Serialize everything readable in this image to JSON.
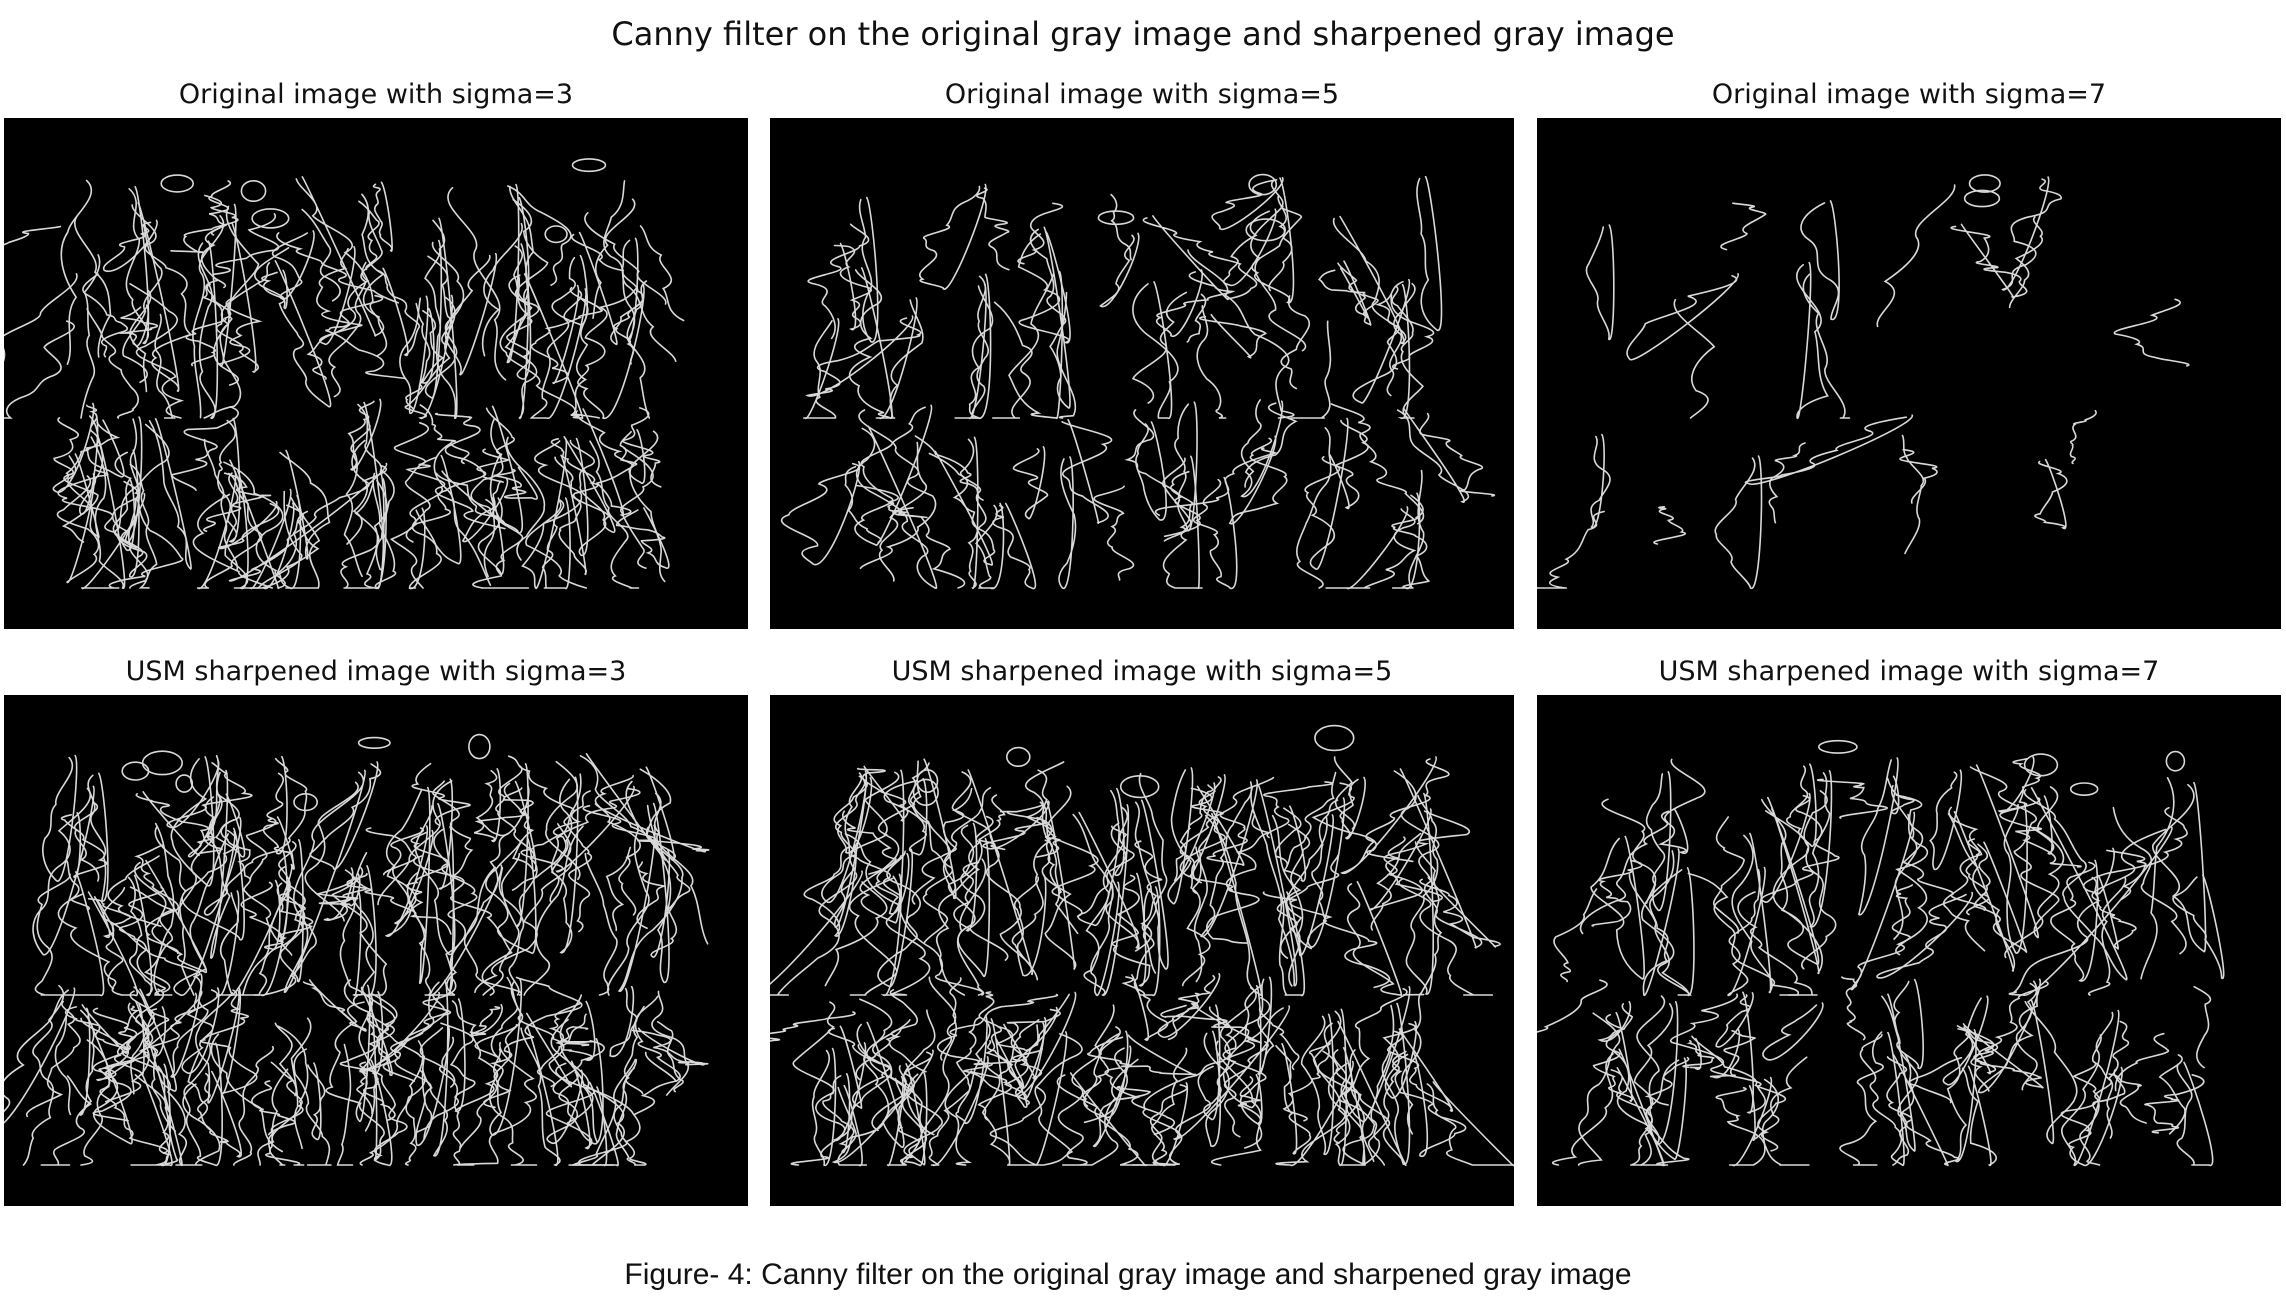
{
  "figure": {
    "suptitle": "Canny filter on the original gray image and sharpened gray image",
    "caption": "Figure- 4: Canny filter on the original gray image and sharpened gray image"
  },
  "panels": [
    {
      "title": "Original image with sigma=3",
      "sigma": 3,
      "source": "original",
      "edge_density": 0.8
    },
    {
      "title": "Original image with sigma=5",
      "sigma": 5,
      "source": "original",
      "edge_density": 0.55
    },
    {
      "title": "Original image with sigma=7",
      "sigma": 7,
      "source": "original",
      "edge_density": 0.25
    },
    {
      "title": "USM sharpened image with sigma=3",
      "sigma": 3,
      "source": "usm_sharpened",
      "edge_density": 1.0
    },
    {
      "title": "USM sharpened image with sigma=5",
      "sigma": 5,
      "source": "usm_sharpened",
      "edge_density": 0.85
    },
    {
      "title": "USM sharpened image with sigma=7",
      "sigma": 7,
      "source": "usm_sharpened",
      "edge_density": 0.65
    }
  ],
  "colors": {
    "background": "#ffffff",
    "panel_background": "#000000",
    "edge_stroke": "#d9d9d9"
  }
}
